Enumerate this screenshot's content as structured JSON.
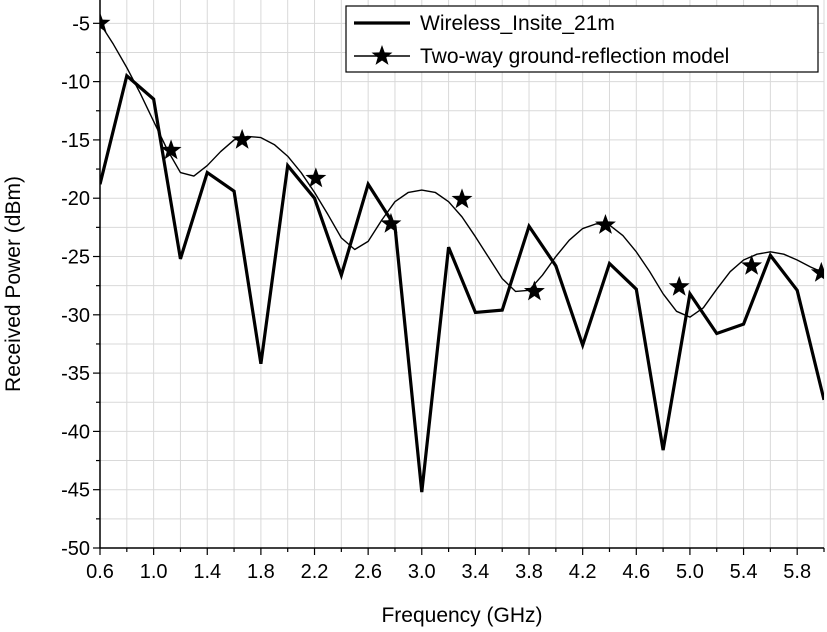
{
  "chart_data": {
    "type": "line",
    "title": "",
    "xlabel": "Frequency (GHz)",
    "ylabel": "Received Power (dBm)",
    "xlim": [
      0.6,
      6.0
    ],
    "ylim": [
      -50,
      -3
    ],
    "x_ticks": [
      "0.6",
      "1.0",
      "1.4",
      "1.8",
      "2.2",
      "2.6",
      "3.0",
      "3.4",
      "3.8",
      "4.2",
      "4.6",
      "5.0",
      "5.4",
      "5.8"
    ],
    "x_tick_values": [
      0.6,
      1.0,
      1.4,
      1.8,
      2.2,
      2.6,
      3.0,
      3.4,
      3.8,
      4.2,
      4.6,
      5.0,
      5.4,
      5.8
    ],
    "y_ticks": [
      "-5",
      "-10",
      "-15",
      "-20",
      "-25",
      "-30",
      "-35",
      "-40",
      "-45",
      "-50"
    ],
    "y_tick_values": [
      -5,
      -10,
      -15,
      -20,
      -25,
      -30,
      -35,
      -40,
      -45,
      -50
    ],
    "grid": true,
    "legend": "top-right",
    "series": [
      {
        "name": "Wireless_Insite_21m",
        "style": "thick-line",
        "color": "#000000",
        "x": [
          0.6,
          0.8,
          1.0,
          1.2,
          1.4,
          1.6,
          1.8,
          2.0,
          2.2,
          2.4,
          2.6,
          2.8,
          3.0,
          3.2,
          3.4,
          3.6,
          3.8,
          4.0,
          4.2,
          4.4,
          4.6,
          4.8,
          5.0,
          5.2,
          5.4,
          5.6,
          5.8,
          6.0
        ],
        "y": [
          -18.8,
          -9.5,
          -11.5,
          -25.2,
          -17.8,
          -19.4,
          -34.2,
          -17.2,
          -20.0,
          -26.6,
          -18.8,
          -22.4,
          -45.2,
          -24.2,
          -29.8,
          -29.6,
          -22.4,
          -25.8,
          -32.6,
          -25.6,
          -27.8,
          -41.6,
          -28.2,
          -31.6,
          -30.8,
          -24.9,
          -27.9,
          -37.3
        ]
      },
      {
        "name": "Two-way ground-reflection model",
        "style": "thin-line-star",
        "color": "#000000",
        "curve_x": [
          0.6,
          0.7,
          0.8,
          0.9,
          1.0,
          1.1,
          1.2,
          1.3,
          1.4,
          1.5,
          1.6,
          1.7,
          1.8,
          1.9,
          2.0,
          2.1,
          2.2,
          2.3,
          2.4,
          2.5,
          2.6,
          2.7,
          2.8,
          2.9,
          3.0,
          3.1,
          3.2,
          3.3,
          3.4,
          3.5,
          3.6,
          3.7,
          3.8,
          3.9,
          4.0,
          4.1,
          4.2,
          4.3,
          4.4,
          4.5,
          4.6,
          4.7,
          4.8,
          4.9,
          5.0,
          5.1,
          5.2,
          5.3,
          5.4,
          5.5,
          5.6,
          5.7,
          5.8,
          5.9,
          6.0
        ],
        "curve_y": [
          -5.0,
          -6.8,
          -8.8,
          -11.0,
          -13.4,
          -15.8,
          -17.8,
          -18.1,
          -17.2,
          -16.0,
          -15.0,
          -14.7,
          -14.8,
          -15.4,
          -16.4,
          -17.8,
          -19.5,
          -21.4,
          -23.4,
          -24.4,
          -23.7,
          -21.9,
          -20.3,
          -19.5,
          -19.3,
          -19.5,
          -20.3,
          -21.6,
          -23.3,
          -25.1,
          -26.9,
          -28.0,
          -27.9,
          -26.6,
          -25.0,
          -23.6,
          -22.6,
          -22.2,
          -22.3,
          -23.2,
          -24.6,
          -26.3,
          -28.2,
          -29.7,
          -30.2,
          -29.4,
          -27.8,
          -26.3,
          -25.3,
          -24.8,
          -24.6,
          -24.8,
          -25.3,
          -25.9,
          -26.4
        ],
        "markers_x": [
          0.6,
          1.13,
          1.66,
          2.21,
          2.77,
          3.3,
          3.84,
          4.37,
          4.92,
          5.46,
          5.98
        ],
        "markers_y": [
          -5.0,
          -15.9,
          -15.0,
          -18.3,
          -22.2,
          -20.1,
          -28.0,
          -22.3,
          -27.6,
          -25.8,
          -26.4
        ]
      }
    ]
  }
}
